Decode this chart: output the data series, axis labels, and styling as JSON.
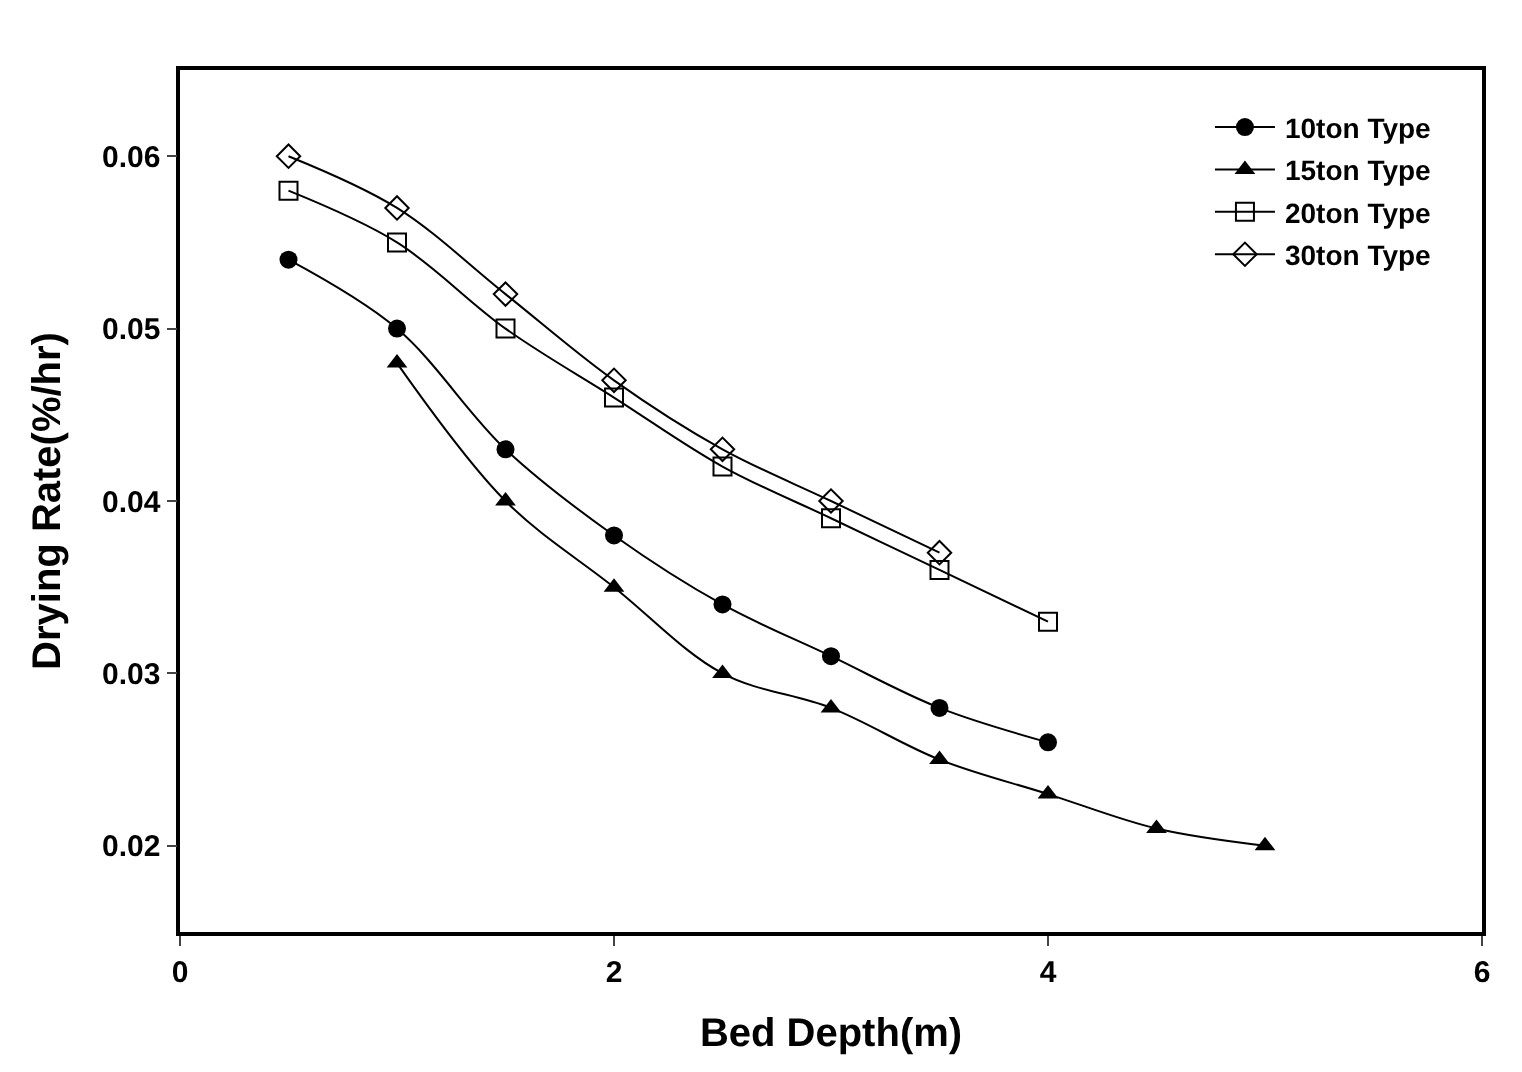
{
  "chart_data": {
    "type": "line",
    "xlabel": "Bed Depth(m)",
    "ylabel": "Drying Rate(%/hr)",
    "xlim": [
      0,
      6
    ],
    "xticks": [
      0,
      2,
      4,
      6
    ],
    "ylim": [
      0.015,
      0.065
    ],
    "yticks": [
      0.02,
      0.03,
      0.04,
      0.05,
      0.06
    ],
    "legend": "top right",
    "line_style": "solid",
    "series": [
      {
        "name": "10ton Type",
        "color": "#000000",
        "marker": "circle",
        "x": [
          0.5,
          1,
          1.5,
          2,
          2.5,
          3,
          3.5,
          4
        ],
        "values": [
          0.054,
          0.05,
          0.043,
          0.038,
          0.034,
          0.031,
          0.028,
          0.026
        ]
      },
      {
        "name": "15ton Type",
        "color": "#000000",
        "marker": "triangle",
        "x": [
          1,
          1.5,
          2,
          2.5,
          3,
          3.5,
          4,
          4.5,
          5
        ],
        "values": [
          0.048,
          0.04,
          0.035,
          0.03,
          0.028,
          0.025,
          0.023,
          0.021,
          0.02
        ]
      },
      {
        "name": "20ton Type",
        "color": "#000000",
        "marker": "square",
        "x": [
          0.5,
          1,
          1.5,
          2,
          2.5,
          3,
          3.5,
          4
        ],
        "values": [
          0.058,
          0.055,
          0.05,
          0.046,
          0.042,
          0.039,
          0.036,
          0.033
        ]
      },
      {
        "name": "30ton Type",
        "color": "#000000",
        "marker": "diamond",
        "x": [
          0.5,
          1,
          1.5,
          2,
          2.5,
          3,
          3.5
        ],
        "values": [
          0.06,
          0.057,
          0.052,
          0.047,
          0.043,
          0.04,
          0.037
        ]
      }
    ]
  }
}
